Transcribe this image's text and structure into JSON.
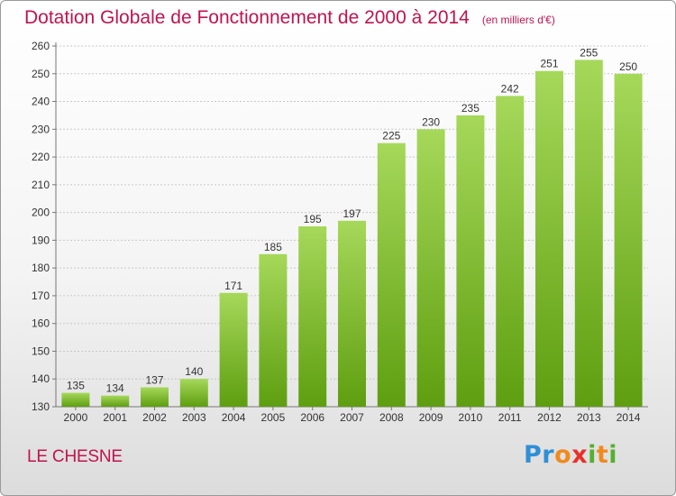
{
  "header": {
    "title": "Dotation Globale de Fonctionnement de 2000 à 2014",
    "subtitle": "(en milliers d'€)"
  },
  "footer": {
    "commune": "LE CHESNE",
    "logo_text": "Proxiti"
  },
  "colors": {
    "title": "#c0144d",
    "bar_light": "#a6d85a",
    "bar_dark": "#5e9e10"
  },
  "chart_data": {
    "type": "bar",
    "title": "Dotation Globale de Fonctionnement de 2000 à 2014",
    "subtitle": "(en milliers d'€)",
    "xlabel": "",
    "ylabel": "",
    "categories": [
      "2000",
      "2001",
      "2002",
      "2003",
      "2004",
      "2005",
      "2006",
      "2007",
      "2008",
      "2009",
      "2010",
      "2011",
      "2012",
      "2013",
      "2014"
    ],
    "values": [
      135,
      134,
      137,
      140,
      171,
      185,
      195,
      197,
      225,
      230,
      235,
      242,
      251,
      255,
      250
    ],
    "ylim": [
      130,
      260
    ],
    "yticks": [
      130,
      140,
      150,
      160,
      170,
      180,
      190,
      200,
      210,
      220,
      230,
      240,
      250,
      260
    ],
    "grid": true,
    "data_labels": true
  }
}
